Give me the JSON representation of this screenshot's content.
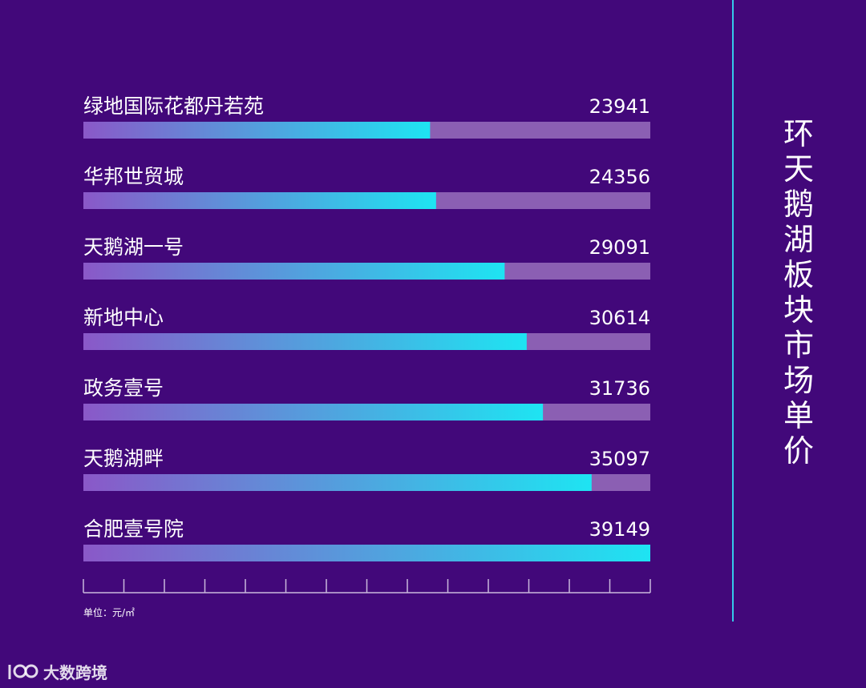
{
  "title": "环天鹅湖板块市场单价",
  "unit_label": "单位：元/㎡",
  "watermark": "大数跨境",
  "colors": {
    "background": "#42087a",
    "bar_track": "#8b5fb3",
    "bar_start": "#8a58c8",
    "bar_end": "#1ee4f2",
    "accent_line": "#35c9ea"
  },
  "chart_data": {
    "type": "bar",
    "orientation": "horizontal",
    "title": "环天鹅湖板块市场单价",
    "categories": [
      "绿地国际花都丹若苑",
      "华邦世贸城",
      "天鹅湖一号",
      "新地中心",
      "政务壹号",
      "天鹅湖畔",
      "合肥壹号院"
    ],
    "values": [
      23941,
      24356,
      29091,
      30614,
      31736,
      35097,
      39149
    ],
    "value_labels": [
      "23941",
      "24356",
      "29091",
      "30614",
      "31736",
      "35097",
      "39149"
    ],
    "xlim": [
      0,
      39149
    ],
    "xlabel": "单位：元/㎡",
    "ylabel": "",
    "grid": false,
    "legend": "none",
    "tick_count": 14
  }
}
